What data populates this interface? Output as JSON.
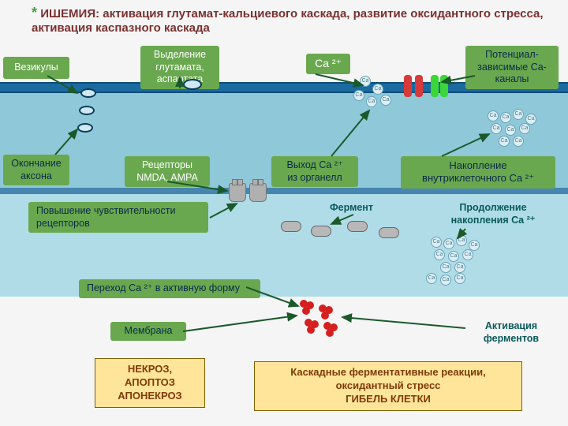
{
  "title": {
    "star": "*",
    "main": "ИШЕМИЯ:",
    "rest": "активация глутамат-кальциевого каскада, развитие оксидантного стресса, активация каспазного каскада"
  },
  "boxes": {
    "vesicles": "Везикулы",
    "glut": "Выделение\nглутамата,\nаспартата",
    "ca2": "Ca ²⁺",
    "ca_channels": "Потенциал-\nзависимые Ca-\nканалы",
    "axon": "Окончание\nаксона",
    "receptors": "Рецепторы\nNMDA, AMPA",
    "ca_out": "Выход Ca ²⁺\nиз органелл",
    "ca_acc": "Накопление\nвнутриклеточного Ca ²⁺",
    "sens": "Повышение чувствительности\nрецепторов",
    "enzyme": "Фермент",
    "cont_acc": "Продолжение\nнакопления Ca ²⁺",
    "active": "Переход Ca ²⁺ в активную форму",
    "membrane": "Мембрана",
    "enz_act": "Активация\nферментов"
  },
  "ybox": {
    "necro": "НЕКРОЗ,\nАПОПТОЗ\nАПОНЕКРОЗ",
    "death": "Каскадные ферментативные реакции,\nоксидантный стресс\nГИБЕЛЬ КЛЕТКИ"
  },
  "colors": {
    "green": "#6aa84f",
    "red_channel": "#d63a3a",
    "green_channel": "#3ad63a"
  }
}
